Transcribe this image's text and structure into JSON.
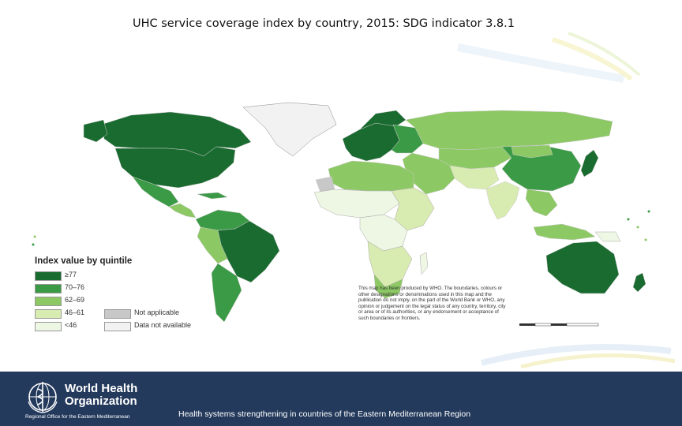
{
  "title": "UHC service coverage index by country, 2015: SDG indicator 3.8.1",
  "legend": {
    "title": "Index value by quintile",
    "items": [
      {
        "label": "≥77",
        "color": "#1a6b30"
      },
      {
        "label": "70–76",
        "color": "#3b9a45"
      },
      {
        "label": "62–69",
        "color": "#8cc863"
      },
      {
        "label": "46–61",
        "color": "#d8ebb0"
      },
      {
        "label": "<46",
        "color": "#eef6e4"
      },
      {
        "label": "Not applicable",
        "color": "#c8c8c8"
      },
      {
        "label": "Data not available",
        "color": "#f2f2f2"
      }
    ]
  },
  "disclaimer": "This map has been produced by WHO. The boundaries, colours or other designations or denominations used in this map and the publication do not imply, on the part of the World Bank or WHO, any opinion or judgement on the legal status of any country, territory, city or area or of its authorities, or any endorsement or acceptance of such boundaries or frontiers.",
  "footer": {
    "org_line1": "World Health",
    "org_line2": "Organization",
    "org_sub": "Regional Office for the Eastern Mediterranean",
    "caption": "Health systems strengthening in countries of the Eastern Mediterranean Region",
    "background": "#243a5c"
  },
  "region_colors": {
    "q1": "#1a6b30",
    "q2": "#3b9a45",
    "q3": "#8cc863",
    "q4": "#d8ebb0",
    "q5": "#eef6e4",
    "na": "#c8c8c8",
    "nodata": "#f2f2f2"
  }
}
